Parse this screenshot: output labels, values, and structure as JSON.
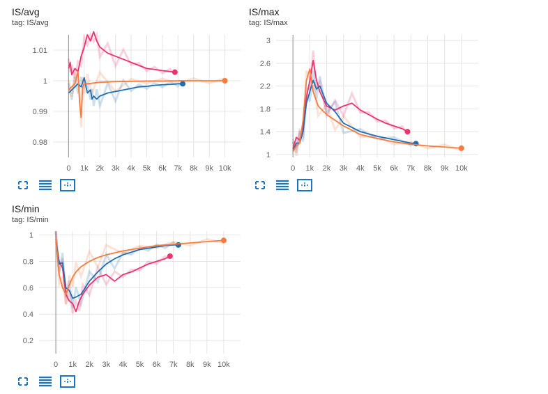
{
  "colors": {
    "pink": "#e8336e",
    "blue": "#1f6fb2",
    "orange": "#f57c3e",
    "grid": "#e4e4e4"
  },
  "toolbar": {
    "icons": [
      "fullscreen-icon",
      "lines-icon",
      "fit-domain-icon"
    ]
  },
  "charts": [
    {
      "title": "IS/avg",
      "tag": "tag: IS/avg",
      "chart_data": {
        "type": "line",
        "title": "IS/avg",
        "xlabel": "",
        "ylabel": "",
        "xlim": [
          -1000,
          11000
        ],
        "ylim": [
          0.975,
          1.015
        ],
        "x_ticks": [
          0,
          1000,
          2000,
          3000,
          4000,
          5000,
          6000,
          7000,
          8000,
          9000,
          10000
        ],
        "x_tick_labels": [
          "0",
          "1k",
          "2k",
          "3k",
          "4k",
          "5k",
          "6k",
          "7k",
          "8k",
          "9k",
          "10k"
        ],
        "y_ticks": [
          0.98,
          0.99,
          1,
          1.01
        ],
        "y_tick_labels": [
          "0.98",
          "0.99",
          "1",
          "1.01"
        ],
        "grid": true,
        "series": [
          {
            "color": "#e8336e",
            "x": [
              0,
              100,
              200,
              400,
              600,
              800,
              1000,
              1200,
              1400,
              1600,
              1800,
              2000,
              2500,
              3000,
              3500,
              4000,
              4500,
              5000,
              5500,
              6000,
              6500,
              6800
            ],
            "y": [
              1.004,
              1.006,
              1.002,
              1.004,
              1.003,
              1.008,
              1.011,
              1.015,
              1.013,
              1.016,
              1.013,
              1.011,
              1.009,
              1.008,
              1.007,
              1.006,
              1.005,
              1.004,
              1.0037,
              1.0033,
              1.003,
              1.0028
            ]
          },
          {
            "color": "#1f6fb2",
            "x": [
              0,
              200,
              400,
              600,
              800,
              1000,
              1200,
              1400,
              1500,
              1600,
              1800,
              2000,
              2500,
              3000,
              3500,
              4000,
              4500,
              5000,
              5500,
              6000,
              6500,
              7000,
              7300
            ],
            "y": [
              0.996,
              0.997,
              0.998,
              0.999,
              0.998,
              1.001,
              0.996,
              0.997,
              0.994,
              0.995,
              0.994,
              0.995,
              0.996,
              0.9965,
              0.997,
              0.9975,
              0.998,
              0.9982,
              0.9985,
              0.9987,
              0.9988,
              0.999,
              0.999
            ]
          },
          {
            "color": "#f57c3e",
            "x": [
              0,
              200,
              400,
              600,
              700,
              800,
              900,
              1000,
              1200,
              1500,
              2000,
              3000,
              4000,
              5000,
              6000,
              7000,
              8000,
              9000,
              10000
            ],
            "y": [
              0.997,
              0.998,
              0.999,
              1.003,
              0.993,
              0.988,
              0.998,
              0.999,
              0.999,
              0.9992,
              0.9995,
              0.9997,
              0.9998,
              0.9999,
              0.9999,
              1.0,
              1.0,
              1.0,
              1.0
            ]
          }
        ]
      }
    },
    {
      "title": "IS/max",
      "tag": "tag: IS/max",
      "chart_data": {
        "type": "line",
        "title": "IS/max",
        "xlabel": "",
        "ylabel": "",
        "xlim": [
          -1000,
          11000
        ],
        "ylim": [
          0.95,
          3.1
        ],
        "x_ticks": [
          0,
          1000,
          2000,
          3000,
          4000,
          5000,
          6000,
          7000,
          8000,
          9000,
          10000
        ],
        "x_tick_labels": [
          "0",
          "1k",
          "2k",
          "3k",
          "4k",
          "5k",
          "6k",
          "7k",
          "8k",
          "9k",
          "10k"
        ],
        "y_ticks": [
          1,
          1.4,
          1.8,
          2.2,
          2.6,
          3
        ],
        "y_tick_labels": [
          "1",
          "1.4",
          "1.8",
          "2.2",
          "2.6",
          "3"
        ],
        "grid": true,
        "series": [
          {
            "color": "#e8336e",
            "x": [
              0,
              200,
              400,
              600,
              800,
              1000,
              1200,
              1400,
              1600,
              2000,
              2500,
              3000,
              3500,
              4000,
              4500,
              5000,
              5500,
              6000,
              6500,
              6800
            ],
            "y": [
              1.1,
              1.3,
              1.25,
              1.5,
              2.0,
              2.3,
              2.65,
              2.3,
              2.1,
              1.85,
              1.78,
              1.85,
              1.9,
              1.78,
              1.7,
              1.62,
              1.55,
              1.5,
              1.45,
              1.4
            ]
          },
          {
            "color": "#1f6fb2",
            "x": [
              0,
              200,
              400,
              600,
              800,
              1000,
              1200,
              1400,
              1600,
              2000,
              2500,
              3000,
              4000,
              5000,
              6000,
              7000,
              7300
            ],
            "y": [
              1.05,
              1.2,
              1.2,
              1.4,
              1.9,
              2.1,
              2.3,
              2.15,
              2.2,
              1.9,
              1.75,
              1.55,
              1.4,
              1.32,
              1.26,
              1.2,
              1.19
            ]
          },
          {
            "color": "#f57c3e",
            "x": [
              0,
              200,
              400,
              600,
              800,
              1000,
              1200,
              1500,
              2000,
              2500,
              3000,
              4000,
              5000,
              6000,
              7000,
              8000,
              9000,
              10000
            ],
            "y": [
              1.05,
              1.15,
              1.2,
              1.6,
              2.3,
              2.5,
              2.1,
              1.85,
              1.7,
              1.6,
              1.5,
              1.35,
              1.28,
              1.22,
              1.18,
              1.15,
              1.13,
              1.11
            ]
          }
        ]
      }
    },
    {
      "title": "IS/min",
      "tag": "tag: IS/min",
      "chart_data": {
        "type": "line",
        "title": "IS/min",
        "xlabel": "",
        "ylabel": "",
        "xlim": [
          -1000,
          11000
        ],
        "ylim": [
          0.1,
          1.03
        ],
        "x_ticks": [
          0,
          1000,
          2000,
          3000,
          4000,
          5000,
          6000,
          7000,
          8000,
          9000,
          10000
        ],
        "x_tick_labels": [
          "0",
          "1k",
          "2k",
          "3k",
          "4k",
          "5k",
          "6k",
          "7k",
          "8k",
          "9k",
          "10k"
        ],
        "y_ticks": [
          0.2,
          0.4,
          0.6,
          0.8,
          1
        ],
        "y_tick_labels": [
          "0.2",
          "0.4",
          "0.6",
          "0.8",
          "1"
        ],
        "grid": true,
        "series": [
          {
            "color": "#e8336e",
            "x": [
              0,
              200,
              400,
              600,
              800,
              1000,
              1200,
              1400,
              1600,
              2000,
              2500,
              3000,
              3500,
              4000,
              4500,
              5000,
              5500,
              6000,
              6500,
              6800
            ],
            "y": [
              0.95,
              0.8,
              0.75,
              0.55,
              0.5,
              0.48,
              0.42,
              0.5,
              0.55,
              0.62,
              0.68,
              0.7,
              0.65,
              0.7,
              0.72,
              0.75,
              0.78,
              0.8,
              0.82,
              0.84
            ]
          },
          {
            "color": "#1f6fb2",
            "x": [
              0,
              200,
              400,
              600,
              800,
              1000,
              1200,
              1500,
              2000,
              2500,
              3000,
              3500,
              4000,
              4500,
              5000,
              5500,
              6000,
              6500,
              7000,
              7300
            ],
            "y": [
              0.97,
              0.78,
              0.79,
              0.6,
              0.58,
              0.52,
              0.53,
              0.55,
              0.65,
              0.72,
              0.78,
              0.82,
              0.85,
              0.87,
              0.89,
              0.9,
              0.91,
              0.92,
              0.925,
              0.925
            ]
          },
          {
            "color": "#f57c3e",
            "x": [
              0,
              200,
              400,
              600,
              800,
              1000,
              1200,
              1500,
              2000,
              2500,
              3000,
              4000,
              5000,
              6000,
              7000,
              8000,
              9000,
              10000
            ],
            "y": [
              0.97,
              0.7,
              0.6,
              0.55,
              0.62,
              0.68,
              0.72,
              0.76,
              0.8,
              0.83,
              0.85,
              0.88,
              0.9,
              0.92,
              0.93,
              0.94,
              0.95,
              0.96
            ]
          }
        ]
      }
    }
  ]
}
